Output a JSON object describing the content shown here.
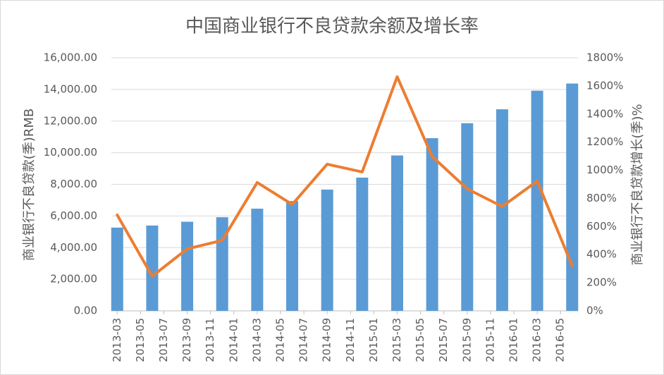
{
  "chart_data": {
    "type": "combo",
    "title": "中国商业银行不良贷款余额及增长率",
    "y_label": "商业银行不良贷款(季)RMB",
    "y2_label": "商业银行不良贷款增长(季)%",
    "x": [
      "2013-03",
      "2013-06",
      "2013-09",
      "2013-12",
      "2014-03",
      "2014-06",
      "2014-09",
      "2014-12",
      "2015-03",
      "2015-06",
      "2015-09",
      "2015-12",
      "2016-03",
      "2016-06"
    ],
    "xlim": [
      "2013-03",
      "2016-06"
    ],
    "xticks": [
      "2013-03",
      "2013-05",
      "2013-07",
      "2013-09",
      "2013-11",
      "2014-01",
      "2014-03",
      "2014-05",
      "2014-07",
      "2014-09",
      "2014-11",
      "2015-01",
      "2015-03",
      "2015-05",
      "2015-07",
      "2015-09",
      "2015-11",
      "2016-01",
      "2016-03",
      "2016-05"
    ],
    "series": [
      {
        "name": "商业银行不良贷款(季)RMB",
        "type": "bar",
        "color": "#5b9bd5",
        "values": [
          5265,
          5395,
          5636,
          5921,
          6461,
          6944,
          7669,
          8426,
          9825,
          10919,
          11863,
          12744,
          13921,
          14373
        ]
      },
      {
        "name": "商业银行不良贷款增长(季)%",
        "type": "line",
        "axis": "y2",
        "color": "#ed7d31",
        "values": [
          682,
          246,
          441,
          501,
          913,
          757,
          1043,
          988,
          1665,
          1098,
          868,
          742,
          923,
          321
        ]
      }
    ],
    "ylim": [
      0,
      16000
    ],
    "yticks": [
      {
        "value": 0,
        "label": "0.00"
      },
      {
        "value": 2000,
        "label": "2,000.00"
      },
      {
        "value": 4000,
        "label": "4,000.00"
      },
      {
        "value": 6000,
        "label": "6,000.00"
      },
      {
        "value": 8000,
        "label": "8,000.00"
      },
      {
        "value": 10000,
        "label": "10,000.00"
      },
      {
        "value": 12000,
        "label": "12,000.00"
      },
      {
        "value": 14000,
        "label": "14,000.00"
      },
      {
        "value": 16000,
        "label": "16,000.00"
      }
    ],
    "y2lim": [
      0,
      1800
    ],
    "y2ticks": [
      {
        "value": 0,
        "label": "0%"
      },
      {
        "value": 200,
        "label": "200%"
      },
      {
        "value": 400,
        "label": "400%"
      },
      {
        "value": 600,
        "label": "600%"
      },
      {
        "value": 800,
        "label": "800%"
      },
      {
        "value": 1000,
        "label": "1000%"
      },
      {
        "value": 1200,
        "label": "1200%"
      },
      {
        "value": 1400,
        "label": "1400%"
      },
      {
        "value": 1600,
        "label": "1600%"
      },
      {
        "value": 1800,
        "label": "1800%"
      }
    ],
    "grid": true
  }
}
